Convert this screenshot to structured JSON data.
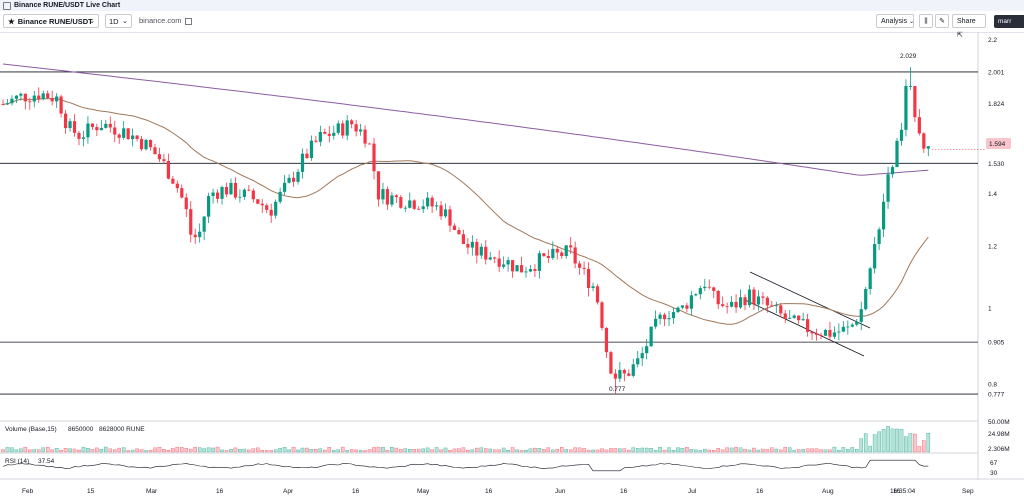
{
  "window": {
    "title": "Binance RUNE/USDT Live Chart"
  },
  "toolbar": {
    "symbol": "Binance RUNE/USDT",
    "interval": "1D",
    "source": "binance.com",
    "analysis_label": "Analysis",
    "share_label": "Share",
    "brand_partial": "marr"
  },
  "colors": {
    "up": "#089981",
    "down": "#f23645",
    "ma50": "#a0785a",
    "ma200": "#8e5ca4",
    "last_price_bg": "#f7c5cb"
  },
  "price_axis": {
    "ticks": [
      "2.2",
      "2.001",
      "1.824",
      "1.530",
      "1.4",
      "1.2",
      "1",
      "0.905",
      "0.8",
      "0.777"
    ],
    "last_price": "1.594"
  },
  "annotations": {
    "high_label": "2.029",
    "low_label": "0.777"
  },
  "volume_pane": {
    "legend": "Volume (Base,15)",
    "value1": "8650000",
    "value2": "8628000 RUNE",
    "axis": [
      "50.00M",
      "24.98M",
      "2.306M"
    ]
  },
  "rsi_pane": {
    "legend": "RSI (14)",
    "value": "37.54",
    "axis": [
      "67",
      "30"
    ]
  },
  "time_axis": {
    "labels": [
      "Feb",
      "15",
      "Mar",
      "16",
      "Apr",
      "16",
      "May",
      "16",
      "Jun",
      "16",
      "Jul",
      "16",
      "Aug",
      "16",
      "Sep"
    ],
    "clock": "16:35:04"
  },
  "chart_data": {
    "type": "candlestick",
    "title": "Binance RUNE/USDT",
    "ylim": [
      0.72,
      2.25
    ],
    "horizontal_levels": [
      2.001,
      1.53,
      0.905,
      0.777
    ],
    "high": 2.029,
    "low": 0.777,
    "last": 1.594,
    "x": [
      "Feb",
      "15",
      "Mar",
      "16",
      "Apr",
      "16",
      "May",
      "16",
      "Jun",
      "16",
      "Jul",
      "16",
      "Aug",
      "16",
      "Sep"
    ],
    "moving_averages": [
      "MA 50",
      "MA 200"
    ]
  }
}
